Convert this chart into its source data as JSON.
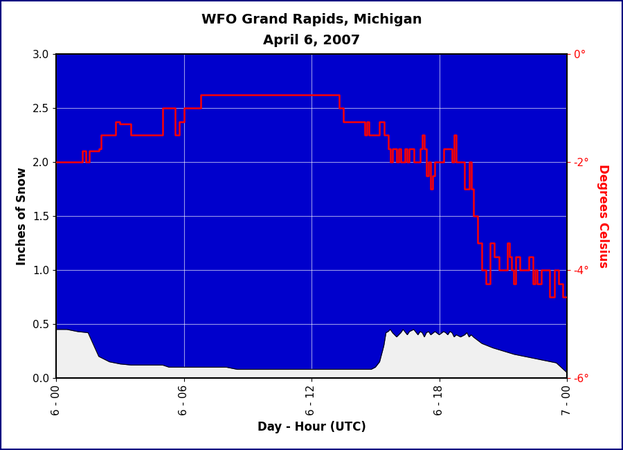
{
  "title_line1": "WFO Grand Rapids, Michigan",
  "title_line2": "April 6, 2007",
  "xlabel": "Day - Hour (UTC)",
  "ylabel_left": "Inches of Snow",
  "ylabel_right": "Degrees Celsius",
  "xlim_hours": [
    0,
    24
  ],
  "ylim_left": [
    0.0,
    3.0
  ],
  "ylim_right": [
    -6.0,
    0.0
  ],
  "xtick_positions": [
    0,
    6,
    12,
    18,
    24
  ],
  "xtick_labels": [
    "6 - 00",
    "6 - 06",
    "6 - 12",
    "6 - 18",
    "7 - 00"
  ],
  "ytick_left": [
    0.0,
    0.5,
    1.0,
    1.5,
    2.0,
    2.5,
    3.0
  ],
  "ytick_right": [
    0,
    -2,
    -4,
    -6
  ],
  "ytick_right_labels": [
    "0°",
    "-2°",
    "-4°",
    "-6°"
  ],
  "bg_color": "#0000CC",
  "snow_fill_color": "#0000CC",
  "below_snow_color": "#F0F0F0",
  "red_line_color": "#FF0000",
  "title_fontsize": 14,
  "axis_label_fontsize": 12,
  "tick_fontsize": 11,
  "temp_steps_x": [
    0.0,
    1.0,
    1.25,
    1.4,
    1.55,
    2.0,
    2.1,
    2.8,
    3.0,
    3.5,
    4.0,
    4.8,
    5.0,
    5.5,
    5.6,
    5.8,
    6.0,
    6.5,
    6.8,
    7.0,
    7.5,
    8.0,
    8.5,
    9.0,
    9.5,
    10.0,
    10.5,
    11.0,
    11.5,
    12.0,
    12.5,
    13.0,
    13.2,
    13.3,
    13.5,
    14.0,
    14.5,
    14.6,
    14.7,
    15.0,
    15.2,
    15.4,
    15.6,
    15.7,
    15.8,
    16.0,
    16.1,
    16.2,
    16.4,
    16.5,
    16.6,
    16.8,
    17.0,
    17.1,
    17.2,
    17.3,
    17.4,
    17.5,
    17.6,
    17.7,
    17.8,
    18.0,
    18.2,
    18.4,
    18.6,
    18.7,
    18.8,
    19.0,
    19.2,
    19.4,
    19.5,
    19.6,
    19.8,
    20.0,
    20.2,
    20.4,
    20.6,
    20.8,
    21.0,
    21.2,
    21.3,
    21.4,
    21.5,
    21.6,
    21.8,
    22.0,
    22.2,
    22.4,
    22.5,
    22.6,
    22.8,
    23.0,
    23.2,
    23.4,
    23.6,
    23.8,
    24.0
  ],
  "temp_steps_y": [
    -2.0,
    -2.0,
    -1.8,
    -2.0,
    -1.8,
    -1.75,
    -1.5,
    -1.25,
    -1.3,
    -1.5,
    -1.5,
    -1.5,
    -1.0,
    -1.0,
    -1.5,
    -1.25,
    -1.0,
    -1.0,
    -0.75,
    -0.75,
    -0.75,
    -0.75,
    -0.75,
    -0.75,
    -0.75,
    -0.75,
    -0.75,
    -0.75,
    -0.75,
    -0.75,
    -0.75,
    -0.75,
    -0.75,
    -1.0,
    -1.25,
    -1.25,
    -1.5,
    -1.25,
    -1.5,
    -1.5,
    -1.25,
    -1.5,
    -1.75,
    -2.0,
    -1.75,
    -2.0,
    -1.75,
    -2.0,
    -1.75,
    -2.0,
    -1.75,
    -2.0,
    -2.0,
    -1.75,
    -1.5,
    -1.75,
    -2.25,
    -2.0,
    -2.5,
    -2.25,
    -2.0,
    -2.0,
    -1.75,
    -1.75,
    -2.0,
    -1.5,
    -2.0,
    -2.0,
    -2.5,
    -2.0,
    -2.5,
    -3.0,
    -3.5,
    -4.0,
    -4.25,
    -3.5,
    -3.75,
    -4.0,
    -4.0,
    -3.5,
    -3.75,
    -4.0,
    -4.25,
    -3.75,
    -4.0,
    -4.0,
    -3.75,
    -4.25,
    -4.0,
    -4.25,
    -4.0,
    -4.0,
    -4.5,
    -4.0,
    -4.25,
    -4.5,
    -4.5
  ],
  "snow_x": [
    0.0,
    0.5,
    1.0,
    1.5,
    2.0,
    2.5,
    3.0,
    3.5,
    4.0,
    4.5,
    5.0,
    5.3,
    5.5,
    5.8,
    6.0,
    6.5,
    7.0,
    7.5,
    8.0,
    8.5,
    9.0,
    9.5,
    10.0,
    10.5,
    11.0,
    11.5,
    12.0,
    12.5,
    13.0,
    13.5,
    14.0,
    14.5,
    14.8,
    15.0,
    15.2,
    15.4,
    15.5,
    15.6,
    15.7,
    15.8,
    16.0,
    16.2,
    16.3,
    16.5,
    16.6,
    16.8,
    17.0,
    17.1,
    17.2,
    17.3,
    17.4,
    17.5,
    17.6,
    17.8,
    18.0,
    18.2,
    18.3,
    18.4,
    18.5,
    18.6,
    18.7,
    18.8,
    19.0,
    19.2,
    19.3,
    19.4,
    19.5,
    19.6,
    19.8,
    20.0,
    20.5,
    21.0,
    21.5,
    22.0,
    22.5,
    23.0,
    23.5,
    24.0
  ],
  "snow_y": [
    0.45,
    0.45,
    0.43,
    0.42,
    0.2,
    0.15,
    0.13,
    0.12,
    0.12,
    0.12,
    0.12,
    0.1,
    0.1,
    0.1,
    0.1,
    0.1,
    0.1,
    0.1,
    0.1,
    0.08,
    0.08,
    0.08,
    0.08,
    0.08,
    0.08,
    0.08,
    0.08,
    0.08,
    0.08,
    0.08,
    0.08,
    0.08,
    0.08,
    0.1,
    0.15,
    0.3,
    0.42,
    0.43,
    0.45,
    0.42,
    0.38,
    0.42,
    0.45,
    0.4,
    0.43,
    0.45,
    0.4,
    0.43,
    0.42,
    0.38,
    0.42,
    0.43,
    0.4,
    0.43,
    0.4,
    0.43,
    0.42,
    0.4,
    0.43,
    0.42,
    0.38,
    0.4,
    0.38,
    0.4,
    0.42,
    0.38,
    0.4,
    0.38,
    0.35,
    0.32,
    0.28,
    0.25,
    0.22,
    0.2,
    0.18,
    0.16,
    0.14,
    0.05
  ]
}
